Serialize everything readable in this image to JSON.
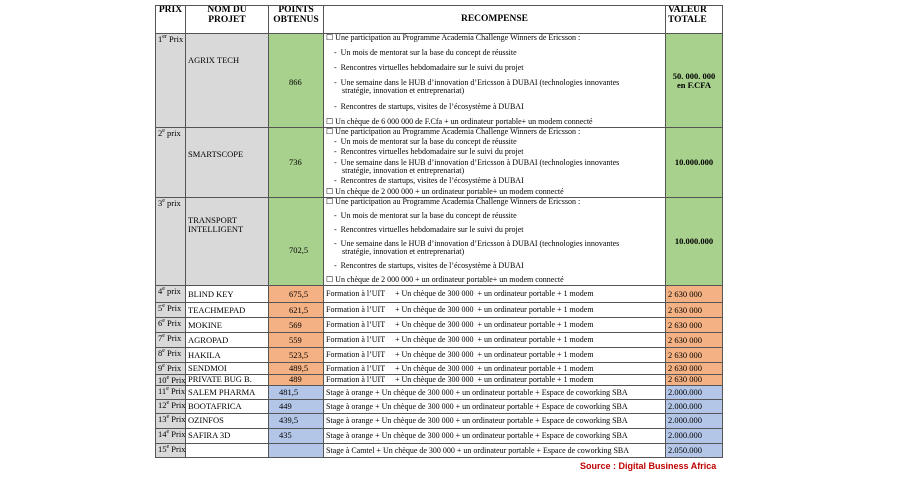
{
  "header": {
    "prix": "PRIX",
    "nom": "NOM DU PROJET",
    "points": "POINTS OBTENUS",
    "recompense": "RECOMPENSE",
    "valeur": "VALEUR TOTALE"
  },
  "rows": [
    {
      "prix": {
        "n": "1",
        "sup": "er",
        "label": " Prix"
      },
      "nom": "AGRIX TECH",
      "points": "866",
      "recompense": {
        "main": "Une participation au Programme Academia Challenge Winners de Ericsson :",
        "sub": [
          "Un mois de mentorat sur la base du concept de réussite",
          "Rencontres virtuelles hebdomadaire sur le suivi du projet",
          "Une semaine dans le HUB d’innovation d’Ericsson à DUBAI (technologies innovantes stratégie, innovation et entreprenariat)",
          "Rencontres de startups, visites de l’écosystème à DUBAI"
        ],
        "cheque": "Un chèque de 6 000 000 de F.Cfa + un ordinateur portable+ un modem connecté"
      },
      "valeur": [
        "50. 000. 000",
        "en F.CFA"
      ]
    },
    {
      "prix": {
        "n": "2",
        "sup": "e",
        "label": " prix"
      },
      "nom": "SMARTSCOPE",
      "points": "736",
      "recompense": {
        "main": "Une participation au Programme Academia Challenge Winners de Ericsson :",
        "sub": [
          "Un mois de mentorat sur la base du concept de réussite",
          "Rencontres virtuelles hebdomadaire sur le suivi du projet",
          "Une semaine dans le HUB d’innovation d’Ericsson à DUBAI (technologies innovantes stratégie, innovation et entreprenariat)",
          "Rencontres de startups, visites de l’écosystème à DUBAI"
        ],
        "cheque": "Un chèque de 2 000 000 + un ordinateur portable+ un modem connecté"
      },
      "valeur": [
        "10.000.000"
      ]
    },
    {
      "prix": {
        "n": "3",
        "sup": "e",
        "label": " prix"
      },
      "nom": "TRANSPORT INTELLIGENT",
      "points": "702,5",
      "recompense": {
        "main": "Une participation au Programme Academia Challenge Winners de Ericsson :",
        "sub": [
          "Un mois de mentorat sur la base du concept de réussite",
          "Rencontres virtuelles hebdomadaire sur le suivi du projet",
          "Une semaine dans le HUB d’innovation d’Ericsson à DUBAI (technologies innovantes stratégie, innovation et entreprenariat)",
          "Rencontres de startups, visites de l’écosystème à DUBAI"
        ],
        "cheque": "Un chèque de 2 000 000 + un ordinateur portable+ un modem connecté"
      },
      "valeur": [
        "10.000.000"
      ]
    },
    {
      "prix": {
        "n": "4",
        "sup": "e",
        "label": " prix"
      },
      "nom": "BLIND KEY",
      "points": "675,5",
      "recompense": "Formation à l’UIT     + Un chèque de 300 000  + un ordinateur portable + 1 modem",
      "valeur": [
        "2 630 000"
      ]
    },
    {
      "prix": {
        "n": "5",
        "sup": "e",
        "label": " Prix"
      },
      "nom": "TEACHMEPAD",
      "points": "621,5",
      "recompense": "Formation à l’UIT     + Un chèque de 300 000  + un ordinateur portable + 1 modem",
      "valeur": [
        "2 630 000"
      ]
    },
    {
      "prix": {
        "n": "6",
        "sup": "e",
        "label": " Prix"
      },
      "nom": "MOKINE",
      "points": "569",
      "recompense": "Formation à l’UIT     + Un chèque de 300 000  + un ordinateur portable + 1 modem",
      "valeur": [
        "2 630 000"
      ]
    },
    {
      "prix": {
        "n": "7",
        "sup": "e",
        "label": " Prix"
      },
      "nom": "AGROPAD",
      "points": "559",
      "recompense": "Formation à l’UIT     + Un chèque de 300 000  + un ordinateur portable + 1 modem",
      "valeur": [
        "2 630 000"
      ]
    },
    {
      "prix": {
        "n": "8",
        "sup": "e",
        "label": " Prix"
      },
      "nom": "HAKILA",
      "points": "523,5",
      "recompense": "Formation à l’UIT     + Un chèque de 300 000  + un ordinateur portable + 1 modem",
      "valeur": [
        "2 630 000"
      ]
    },
    {
      "prix": {
        "n": "9",
        "sup": "e",
        "label": " Prix"
      },
      "nom": "SENDMOI",
      "points": "489,5",
      "recompense": "Formation à l’UIT     + Un chèque de 300 000  + un ordinateur portable + 1 modem",
      "valeur": [
        "2 630 000"
      ]
    },
    {
      "prix": {
        "n": "10",
        "sup": "e",
        "label": " Prix"
      },
      "nom": "PRIVATE BUG B.",
      "points": "489",
      "recompense": "Formation à l’UIT     + Un chèque de 300 000  + un ordinateur portable + 1 modem",
      "valeur": [
        "2 630 000"
      ]
    },
    {
      "prix": {
        "n": "11",
        "sup": "e",
        "label": " Prix"
      },
      "nom": "SALEM PHARMA",
      "points": "481,5",
      "recompense": "Stage à orange + Un chèque de 300 000 + un ordinateur portable + Espace de coworking SBA",
      "valeur": [
        "2.000.000"
      ]
    },
    {
      "prix": {
        "n": "12",
        "sup": "e",
        "label": " Prix"
      },
      "nom": "BOOTAFRICA",
      "points": "449",
      "recompense": "Stage à orange + Un chèque de 300 000 + un ordinateur portable + Espace de coworking SBA",
      "valeur": [
        "2.000.000"
      ]
    },
    {
      "prix": {
        "n": "13",
        "sup": "e",
        "label": " Prix"
      },
      "nom": "OZINFOS",
      "points": "439,5",
      "recompense": "Stage à orange + Un chèque de 300 000 + un ordinateur portable + Espace de coworking SBA",
      "valeur": [
        "2.000.000"
      ]
    },
    {
      "prix": {
        "n": "14",
        "sup": "e",
        "label": " Prix"
      },
      "nom": "SAFIRA 3D",
      "points": "435",
      "recompense": "Stage à orange + Un chèque de 300 000 + un ordinateur portable + Espace de coworking SBA",
      "valeur": [
        "2.000.000"
      ]
    },
    {
      "prix": {
        "n": "15",
        "sup": "e",
        "label": " Prix"
      },
      "nom": null,
      "points": null,
      "recompense": "Stage à Camtel + Un chèque de 300 000 + un ordinateur portable + Espace de coworking SBA",
      "valeur": [
        "2.050.000"
      ]
    }
  ],
  "source": "Source : Digital Business Africa"
}
